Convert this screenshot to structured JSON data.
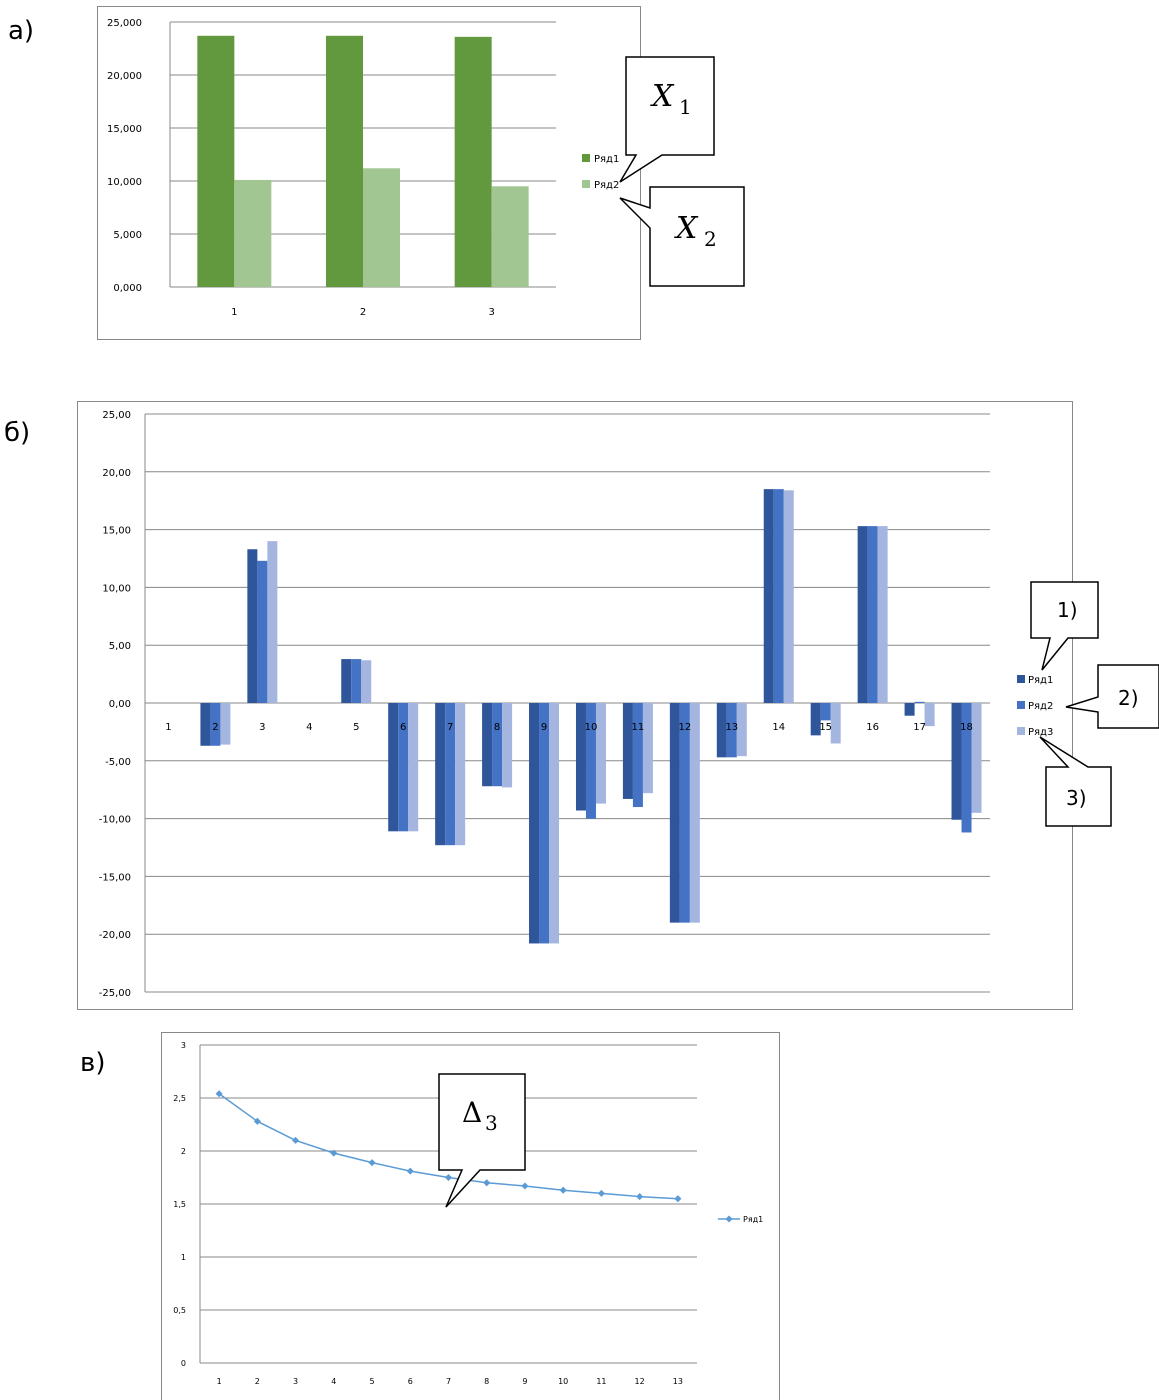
{
  "panels": {
    "a": "а)",
    "b": "б)",
    "c": "в)"
  },
  "colors": {
    "green_dark": "#62993e",
    "green_light": "#a2c691",
    "blue_dark": "#2f559a",
    "blue_mid": "#4472c4",
    "blue_light": "#a4b5e0",
    "line_blue": "#5b9bd5"
  },
  "callouts": {
    "a_x1": "X",
    "a_x1_sub": "1",
    "a_x2": "X",
    "a_x2_sub": "2",
    "b_1": "1)",
    "b_2": "2)",
    "b_3": "3)",
    "c_delta": "Δ",
    "c_delta_sub": "3"
  },
  "chart_data": [
    {
      "type": "bar",
      "categories": [
        "1",
        "2",
        "3"
      ],
      "series": [
        {
          "name": "Ряд1",
          "values": [
            23.7,
            23.7,
            23.6
          ]
        },
        {
          "name": "Ряд2",
          "values": [
            10.1,
            11.2,
            9.5
          ]
        }
      ],
      "ylim": [
        0,
        25
      ],
      "yticks": [
        "0,000",
        "5,000",
        "10,000",
        "15,000",
        "20,000",
        "25,000"
      ],
      "grid": true,
      "legend": "right"
    },
    {
      "type": "bar",
      "categories": [
        "1",
        "2",
        "3",
        "4",
        "5",
        "6",
        "7",
        "8",
        "9",
        "10",
        "11",
        "12",
        "13",
        "14",
        "15",
        "16",
        "17",
        "18"
      ],
      "series": [
        {
          "name": "Ряд1",
          "values": [
            0,
            -3.7,
            13.3,
            0,
            3.8,
            -11.1,
            -12.3,
            -7.2,
            -20.8,
            -9.3,
            -8.3,
            -19.0,
            -4.7,
            18.5,
            -2.8,
            15.3,
            -1.1,
            -10.1
          ]
        },
        {
          "name": "Ряд2",
          "values": [
            0,
            -3.7,
            12.3,
            0,
            3.8,
            -11.1,
            -12.3,
            -7.2,
            -20.8,
            -10.0,
            -9.0,
            -19.0,
            -4.7,
            18.5,
            -1.5,
            15.3,
            0.1,
            -11.2
          ]
        },
        {
          "name": "Ряд3",
          "values": [
            0,
            -3.6,
            14.0,
            0,
            3.7,
            -11.1,
            -12.3,
            -7.3,
            -20.8,
            -8.7,
            -7.8,
            -19.0,
            -4.6,
            18.4,
            -3.5,
            15.3,
            -2.0,
            -9.5
          ]
        }
      ],
      "ylim": [
        -25,
        25
      ],
      "yticks": [
        "-25,00",
        "-20,00",
        "-15,00",
        "-10,00",
        "-5,00",
        "0,00",
        "5,00",
        "10,00",
        "15,00",
        "20,00",
        "25,00"
      ],
      "grid": true,
      "legend": "right"
    },
    {
      "type": "line",
      "categories": [
        "1",
        "2",
        "3",
        "4",
        "5",
        "6",
        "7",
        "8",
        "9",
        "10",
        "11",
        "12",
        "13"
      ],
      "series": [
        {
          "name": "Ряд1",
          "values": [
            2.54,
            2.28,
            2.1,
            1.98,
            1.89,
            1.81,
            1.75,
            1.7,
            1.67,
            1.63,
            1.6,
            1.57,
            1.55
          ]
        }
      ],
      "ylim": [
        0,
        3
      ],
      "yticks": [
        "0",
        "0,5",
        "1",
        "1,5",
        "2",
        "2,5",
        "3"
      ],
      "grid": true,
      "legend": "right"
    }
  ]
}
